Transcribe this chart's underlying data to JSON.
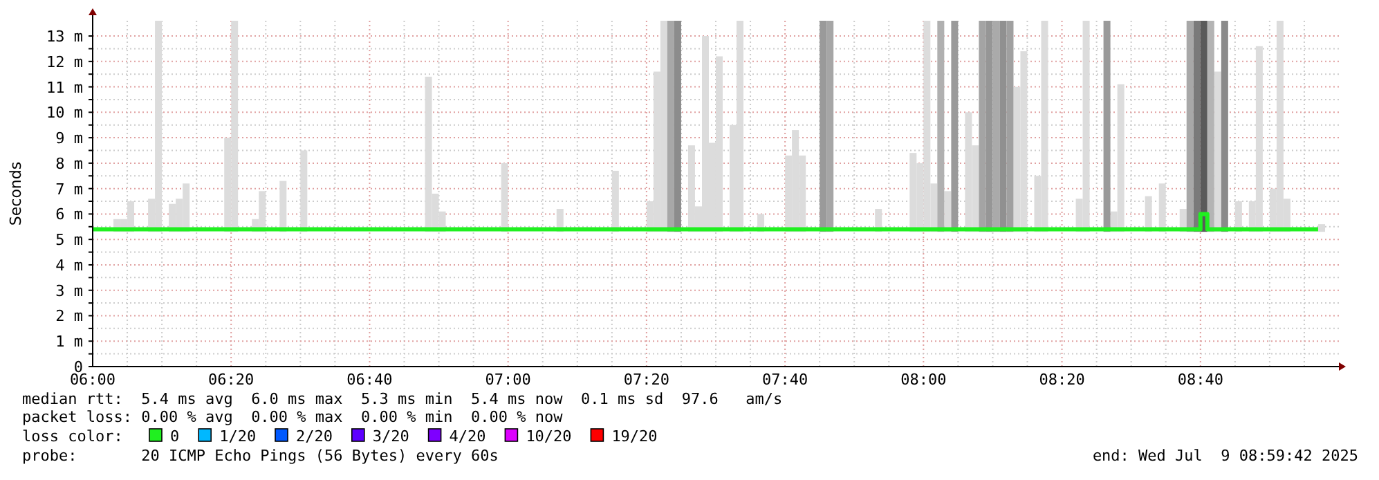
{
  "chart_data": {
    "type": "bar",
    "ylabel": "Seconds",
    "xlim": [
      6,
      9
    ],
    "ylim": [
      0,
      13.6
    ],
    "xticks": [
      {
        "value": 6,
        "label": "06:00"
      },
      {
        "value": 6.0833,
        "label": null
      },
      {
        "value": 6.1667,
        "label": null
      },
      {
        "value": 6.25,
        "label": null
      },
      {
        "value": 6.3333,
        "label": "06:20"
      },
      {
        "value": 6.4167,
        "label": null
      },
      {
        "value": 6.5,
        "label": null
      },
      {
        "value": 6.5833,
        "label": null
      },
      {
        "value": 6.6667,
        "label": "06:40"
      },
      {
        "value": 6.75,
        "label": null
      },
      {
        "value": 6.8333,
        "label": null
      },
      {
        "value": 6.9167,
        "label": null
      },
      {
        "value": 7,
        "label": "07:00"
      },
      {
        "value": 7.0833,
        "label": null
      },
      {
        "value": 7.1667,
        "label": null
      },
      {
        "value": 7.25,
        "label": null
      },
      {
        "value": 7.3333,
        "label": "07:20"
      },
      {
        "value": 7.4167,
        "label": null
      },
      {
        "value": 7.5,
        "label": null
      },
      {
        "value": 7.5833,
        "label": null
      },
      {
        "value": 7.6667,
        "label": "07:40"
      },
      {
        "value": 7.75,
        "label": null
      },
      {
        "value": 7.8333,
        "label": null
      },
      {
        "value": 7.9167,
        "label": null
      },
      {
        "value": 8,
        "label": "08:00"
      },
      {
        "value": 8.0833,
        "label": null
      },
      {
        "value": 8.1667,
        "label": null
      },
      {
        "value": 8.25,
        "label": null
      },
      {
        "value": 8.3333,
        "label": "08:20"
      },
      {
        "value": 8.4167,
        "label": null
      },
      {
        "value": 8.5,
        "label": null
      },
      {
        "value": 8.5833,
        "label": null
      },
      {
        "value": 8.6667,
        "label": "08:40"
      },
      {
        "value": 8.75,
        "label": null
      },
      {
        "value": 8.8333,
        "label": null
      },
      {
        "value": 8.9167,
        "label": null
      }
    ],
    "yticks": [
      0,
      {
        "value": 0.5,
        "label": null
      },
      {
        "value": 1,
        "label": "1 m"
      },
      {
        "value": 1.5,
        "label": null
      },
      {
        "value": 2,
        "label": "2 m"
      },
      {
        "value": 2.5,
        "label": null
      },
      {
        "value": 3,
        "label": "3 m"
      },
      {
        "value": 3.5,
        "label": null
      },
      {
        "value": 4,
        "label": "4 m"
      },
      {
        "value": 4.5,
        "label": null
      },
      {
        "value": 5,
        "label": "5 m"
      },
      {
        "value": 5.5,
        "label": null
      },
      {
        "value": 6,
        "label": "6 m"
      },
      {
        "value": 6.5,
        "label": null
      },
      {
        "value": 7,
        "label": "7 m"
      },
      {
        "value": 7.5,
        "label": null
      },
      {
        "value": 8,
        "label": "8 m"
      },
      {
        "value": 8.5,
        "label": null
      },
      {
        "value": 9,
        "label": "9 m"
      },
      {
        "value": 9.5,
        "label": null
      },
      {
        "value": 10,
        "label": "10 m"
      },
      {
        "value": 10.5,
        "label": null
      },
      {
        "value": 11,
        "label": "11 m"
      },
      {
        "value": 11.5,
        "label": null
      },
      {
        "value": 12,
        "label": "12 m"
      },
      {
        "value": 12.5,
        "label": null
      },
      {
        "value": 13,
        "label": "13 m"
      }
    ],
    "grid": true,
    "legend": "bottom",
    "series": [
      {
        "color": "#dcdcdc",
        "x": [
          6.05,
          6.0667,
          6.0833,
          6.1333,
          6.15,
          6.1833,
          6.2,
          6.2167,
          6.3167,
          6.3333,
          6.3833,
          6.4,
          6.45,
          6.5,
          6.8,
          6.8167,
          6.8333,
          6.9833,
          7.1167,
          7.25,
          7.3333,
          7.35,
          7.3667,
          7.4333,
          7.45,
          7.4667,
          7.4833,
          7.5,
          7.5333,
          7.55,
          7.6,
          7.6667,
          7.6833,
          7.7,
          7.8833,
          7.9667,
          7.9833,
          8,
          8.0167,
          8.05,
          8.1,
          8.1167,
          8.2167,
          8.2333,
          8.2667,
          8.2833,
          8.3667,
          8.3833,
          8.45,
          8.4667,
          8.5333,
          8.5667,
          8.6167,
          8.7,
          8.75,
          8.7833,
          8.8,
          8.8333,
          8.85,
          8.8667,
          8.95
        ],
        "base": [
          5.3,
          5.3,
          5.3,
          5.3,
          5.3,
          5.3,
          5.3,
          5.3,
          5.3,
          5.3,
          5.3,
          5.3,
          5.3,
          5.3,
          5.3,
          5.3,
          5.3,
          5.3,
          5.3,
          5.3,
          5.3,
          5.3,
          5.3,
          5.3,
          5.3,
          5.3,
          5.3,
          5.3,
          5.3,
          5.3,
          5.3,
          5.3,
          5.3,
          5.3,
          5.3,
          5.3,
          5.3,
          5.3,
          5.3,
          5.3,
          5.3,
          5.3,
          5.3,
          5.3,
          5.3,
          5.3,
          5.3,
          5.3,
          5.3,
          5.3,
          5.3,
          5.3,
          5.3,
          5.3,
          5.3,
          5.3,
          5.3,
          5.3,
          5.3,
          5.3,
          5.3
        ],
        "values": [
          0.5,
          0.5,
          1.2,
          1.3,
          8.3,
          1.1,
          1.3,
          1.9,
          3.7,
          8.3,
          0.5,
          1.6,
          2.0,
          3.2,
          6.1,
          1.5,
          0.8,
          2.7,
          0.9,
          2.4,
          1.2,
          6.3,
          8.3,
          3.4,
          1.0,
          7.7,
          3.5,
          6.9,
          4.2,
          8.3,
          0.7,
          3.0,
          4.0,
          3.0,
          0.9,
          3.1,
          2.7,
          8.3,
          1.9,
          1.6,
          4.7,
          3.4,
          5.7,
          7.1,
          2.2,
          8.3,
          1.3,
          8.3,
          0.8,
          5.8,
          1.4,
          1.9,
          0.9,
          6.3,
          1.2,
          1.2,
          7.3,
          1.7,
          8.3,
          1.3,
          0.3
        ]
      },
      {
        "colors": [
          "#a8a8a8",
          "#8c8c8c",
          "#9a9a9a",
          "#a6a6a6",
          "#b0b0b0",
          "#9a9a9a",
          "#a4a4a4",
          "#969696",
          "#aaaaaa",
          "#909090",
          "#a0a0a0",
          "#9a9a9a",
          "#a8a8a8",
          "#7a7a7a",
          "#5a5a5a",
          "#b4b4b4",
          "#8a8a8a"
        ],
        "x": [
          7.3833,
          7.4,
          7.75,
          7.7667,
          8.0333,
          8.0667,
          8.1333,
          8.15,
          8.1667,
          8.1833,
          8.2,
          8.4333,
          8.6333,
          8.65,
          8.6667,
          8.6833,
          8.7167
        ],
        "base": [
          5.3,
          5.3,
          5.3,
          5.3,
          5.3,
          5.3,
          5.3,
          5.3,
          5.3,
          5.3,
          5.3,
          5.3,
          5.3,
          5.3,
          5.3,
          5.3,
          5.3
        ],
        "values": [
          8.3,
          8.3,
          8.3,
          8.3,
          8.3,
          8.3,
          8.3,
          8.3,
          8.3,
          8.3,
          8.3,
          8.3,
          8.3,
          8.3,
          8.3,
          8.3,
          8.3
        ]
      },
      {
        "type": "step",
        "name": "0",
        "color": "#20f020",
        "x": [
          6,
          6.1667,
          6.3333,
          6.5,
          6.6667,
          6.8333,
          7,
          7.1667,
          7.3333,
          7.5,
          7.6667,
          7.8333,
          8,
          8.1667,
          8.3333,
          8.5,
          8.6333,
          8.65,
          8.6667,
          8.6833,
          8.7,
          8.8333,
          8.95
        ],
        "values": [
          5.4,
          5.4,
          5.4,
          5.4,
          5.4,
          5.4,
          5.4,
          5.4,
          5.4,
          5.4,
          5.4,
          5.4,
          5.4,
          5.4,
          5.4,
          5.4,
          5.4,
          5.4,
          6.0,
          5.4,
          5.4,
          5.4,
          5.4
        ]
      }
    ],
    "annotations": [
      "median rtt:  5.4 ms avg  6.0 ms max  5.3 ms min  5.4 ms now  0.1 ms sd  97.6   am/s",
      "packet loss: 0.00 % avg  0.00 % max  0.00 % min  0.00 % now",
      "loss color:",
      "1/20",
      "2/20",
      "3/20",
      "4/20",
      "10/20",
      "19/20",
      "probe:       20 ICMP Echo Pings (56 Bytes) every 60s",
      "end: Wed Jul  9 08:59:42 2025"
    ]
  }
}
